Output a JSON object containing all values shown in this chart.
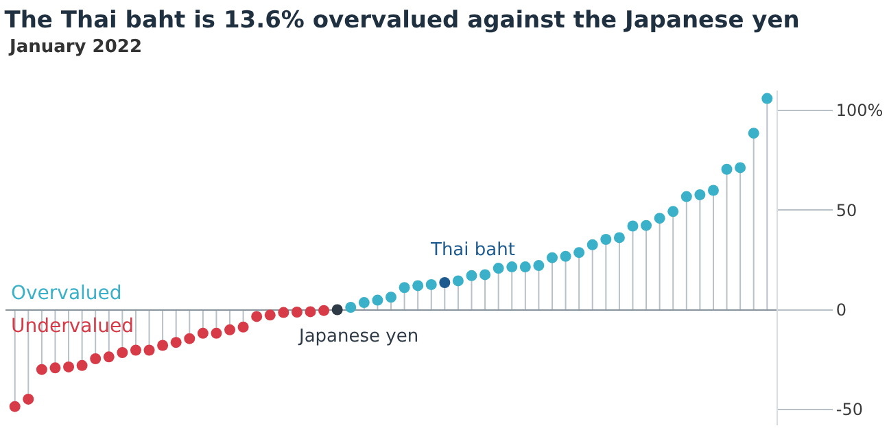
{
  "chart_data": {
    "type": "lollipop",
    "title": "The Thai baht is 13.6% overvalued against the Japanese yen",
    "subtitle": "January 2022",
    "categories": [
      null,
      null,
      null,
      null,
      null,
      null,
      null,
      null,
      null,
      null,
      null,
      null,
      null,
      null,
      null,
      null,
      null,
      null,
      null,
      null,
      null,
      null,
      null,
      null,
      null,
      null,
      null,
      null,
      null,
      null,
      null,
      null,
      null,
      null,
      null,
      null,
      null,
      null,
      null,
      null,
      null,
      null,
      null,
      null,
      null,
      null,
      null,
      null,
      null,
      null,
      null,
      null,
      null,
      null,
      null,
      null,
      null
    ],
    "values": [
      -48.6,
      -44.9,
      -30,
      -29.2,
      -28.7,
      -28,
      -24.6,
      -23.7,
      -21.5,
      -20.3,
      -20.3,
      -17.9,
      -16.4,
      -14.5,
      -11.8,
      -11.8,
      -10.1,
      -8.7,
      -3.4,
      -2.7,
      -1.4,
      -1.2,
      -1,
      -0.4,
      0,
      1.2,
      3.6,
      4.8,
      6.3,
      11.1,
      12.1,
      12.6,
      13.6,
      14.5,
      17.1,
      17.6,
      20.8,
      21.5,
      21.5,
      22.2,
      26.1,
      26.8,
      28.7,
      32.6,
      35.3,
      36.2,
      42,
      42.3,
      45.9,
      49.3,
      56.8,
      57.7,
      59.9,
      70.5,
      71.3,
      88.6,
      106
    ],
    "colors": [
      "#d63b47",
      "#d63b47",
      "#d63b47",
      "#d63b47",
      "#d63b47",
      "#d63b47",
      "#d63b47",
      "#d63b47",
      "#d63b47",
      "#d63b47",
      "#d63b47",
      "#d63b47",
      "#d63b47",
      "#d63b47",
      "#d63b47",
      "#d63b47",
      "#d63b47",
      "#d63b47",
      "#d63b47",
      "#d63b47",
      "#d63b47",
      "#d63b47",
      "#d63b47",
      "#d63b47",
      "#2e3a46",
      "#3bb0c9",
      "#3bb0c9",
      "#3bb0c9",
      "#3bb0c9",
      "#3bb0c9",
      "#3bb0c9",
      "#3bb0c9",
      "#1d5b8f",
      "#3bb0c9",
      "#3bb0c9",
      "#3bb0c9",
      "#3bb0c9",
      "#3bb0c9",
      "#3bb0c9",
      "#3bb0c9",
      "#3bb0c9",
      "#3bb0c9",
      "#3bb0c9",
      "#3bb0c9",
      "#3bb0c9",
      "#3bb0c9",
      "#3bb0c9",
      "#3bb0c9",
      "#3bb0c9",
      "#3bb0c9",
      "#3bb0c9",
      "#3bb0c9",
      "#3bb0c9",
      "#3bb0c9",
      "#3bb0c9",
      "#3bb0c9",
      "#3bb0c9"
    ],
    "ylim": [
      -58,
      110
    ],
    "yticks": [
      {
        "value": -50,
        "label": "-50"
      },
      0,
      50,
      {
        "value": 100,
        "label": "100%"
      }
    ],
    "annotations": [
      {
        "text": "Thai baht",
        "y": 13.6
      },
      {
        "text": "Japanese yen",
        "y": 0
      },
      "Overvalued",
      "Undervalued"
    ],
    "grid": "y",
    "legend": false,
    "marker": "circle",
    "tick_labels": "y"
  }
}
